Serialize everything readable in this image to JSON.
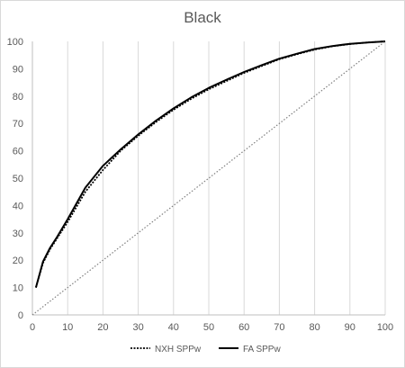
{
  "chart_data": {
    "type": "line",
    "title": "Black",
    "xlabel": "",
    "ylabel": "",
    "xlim": [
      0,
      100
    ],
    "ylim": [
      0,
      100
    ],
    "x_ticks": [
      0,
      10,
      20,
      30,
      40,
      50,
      60,
      70,
      80,
      90,
      100
    ],
    "y_ticks": [
      0,
      10,
      20,
      30,
      40,
      50,
      60,
      70,
      80,
      90,
      100
    ],
    "grid": "vertical",
    "legend_position": "bottom",
    "series": [
      {
        "name": "NXH SPPw",
        "style": "dotted",
        "color": "#000000",
        "x": [
          1,
          3,
          5,
          7,
          10,
          15,
          20,
          25,
          30,
          35,
          40,
          45,
          50,
          55,
          60,
          65,
          70,
          75,
          80,
          85,
          90,
          95,
          100
        ],
        "y": [
          10,
          19,
          24,
          28,
          34,
          45,
          53,
          60,
          65.5,
          70.5,
          75,
          79,
          82.5,
          85.5,
          88.5,
          91,
          93.5,
          95.3,
          97,
          98.2,
          99,
          99.6,
          100
        ]
      },
      {
        "name": "FA SPPw",
        "style": "solid",
        "color": "#000000",
        "x": [
          1,
          3,
          5,
          7,
          10,
          15,
          20,
          25,
          30,
          35,
          40,
          45,
          50,
          55,
          60,
          65,
          70,
          75,
          80,
          85,
          90,
          95,
          100
        ],
        "y": [
          10,
          19.5,
          24.5,
          28.5,
          35,
          46.5,
          54.5,
          60.5,
          66,
          71,
          75.5,
          79.5,
          83,
          86,
          88.8,
          91.3,
          93.7,
          95.5,
          97.2,
          98.3,
          99.1,
          99.6,
          100
        ]
      },
      {
        "name": "",
        "style": "dotted",
        "color": "#808080",
        "x": [
          0,
          100
        ],
        "y": [
          0,
          100
        ]
      }
    ]
  }
}
